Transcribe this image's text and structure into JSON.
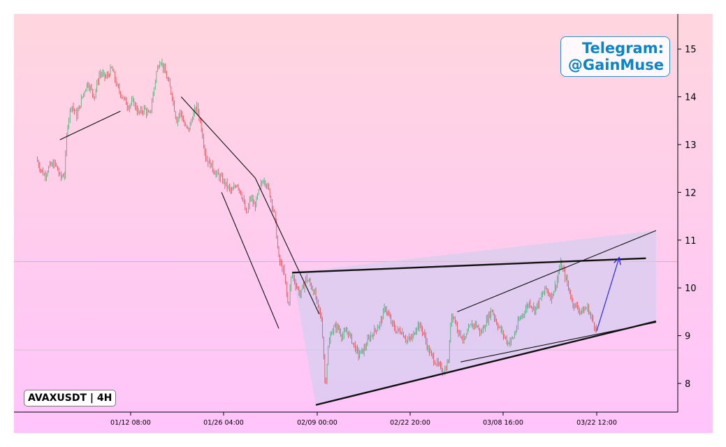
{
  "chart_data": {
    "type": "candlestick",
    "title": "",
    "symbol_label": "AVAXUSDT | 4H",
    "watermark_lines": [
      "Telegram:",
      "@GainMuse"
    ],
    "y_axis": {
      "position": "right",
      "range": [
        7.4,
        15.5
      ],
      "ticks": [
        8,
        9,
        10,
        11,
        12,
        13,
        14,
        15
      ]
    },
    "x_axis": {
      "range_days": [
        0,
        99
      ],
      "ticks": [
        {
          "label": "01/12 08:00",
          "day": 14.0
        },
        {
          "label": "01/26 04:00",
          "day": 27.8
        },
        {
          "label": "02/09 00:00",
          "day": 41.7
        },
        {
          "label": "02/22 20:00",
          "day": 55.5
        },
        {
          "label": "03/08 16:00",
          "day": 69.3
        },
        {
          "label": "03/22 12:00",
          "day": 83.2
        }
      ]
    },
    "price_path": [
      [
        0,
        12.7
      ],
      [
        0.6,
        12.5
      ],
      [
        1.2,
        12.35
      ],
      [
        2,
        12.55
      ],
      [
        2.8,
        12.6
      ],
      [
        3.6,
        12.3
      ],
      [
        4.2,
        12.4
      ],
      [
        4.6,
        13.4
      ],
      [
        5.2,
        13.85
      ],
      [
        6,
        13.6
      ],
      [
        6.8,
        14.0
      ],
      [
        7.6,
        14.3
      ],
      [
        8.6,
        14.0
      ],
      [
        9.4,
        14.5
      ],
      [
        10.4,
        14.4
      ],
      [
        11.2,
        14.6
      ],
      [
        12,
        14.2
      ],
      [
        12.8,
        14.0
      ],
      [
        13.6,
        13.8
      ],
      [
        14.4,
        13.9
      ],
      [
        15.2,
        13.65
      ],
      [
        16,
        13.75
      ],
      [
        16.8,
        13.6
      ],
      [
        17.4,
        14.1
      ],
      [
        17.8,
        14.5
      ],
      [
        18.4,
        14.8
      ],
      [
        19,
        14.55
      ],
      [
        19.6,
        14.3
      ],
      [
        20.2,
        14.0
      ],
      [
        20.8,
        13.5
      ],
      [
        21.4,
        13.7
      ],
      [
        22,
        13.4
      ],
      [
        22.6,
        13.3
      ],
      [
        23.2,
        13.6
      ],
      [
        23.8,
        13.8
      ],
      [
        24.4,
        13.45
      ],
      [
        25.2,
        12.7
      ],
      [
        25.8,
        12.6
      ],
      [
        26.6,
        12.4
      ],
      [
        27.4,
        12.3
      ],
      [
        28.2,
        12.15
      ],
      [
        29,
        12.0
      ],
      [
        29.8,
        12.2
      ],
      [
        30.6,
        11.9
      ],
      [
        31.2,
        11.5
      ],
      [
        31.8,
        11.9
      ],
      [
        32.4,
        11.7
      ],
      [
        33.2,
        12.1
      ],
      [
        33.8,
        12.3
      ],
      [
        34.6,
        12.0
      ],
      [
        35.4,
        11.5
      ],
      [
        36,
        10.6
      ],
      [
        36.8,
        10.3
      ],
      [
        37.4,
        9.6
      ],
      [
        37.9,
        10.3
      ],
      [
        38.6,
        10.05
      ],
      [
        39.2,
        9.85
      ],
      [
        40,
        10.2
      ],
      [
        40.6,
        10.1
      ],
      [
        41.3,
        9.9
      ],
      [
        41.8,
        9.6
      ],
      [
        42.4,
        9.3
      ],
      [
        42.9,
        7.9
      ],
      [
        43.3,
        8.7
      ],
      [
        43.8,
        9.1
      ],
      [
        44.6,
        9.2
      ],
      [
        45.4,
        9.0
      ],
      [
        46.2,
        9.1
      ],
      [
        47,
        8.85
      ],
      [
        47.8,
        8.6
      ],
      [
        48.6,
        8.7
      ],
      [
        49.4,
        8.95
      ],
      [
        50.2,
        9.1
      ],
      [
        51,
        9.25
      ],
      [
        51.8,
        9.6
      ],
      [
        52.6,
        9.3
      ],
      [
        53.4,
        9.1
      ],
      [
        54.2,
        9.1
      ],
      [
        55,
        8.9
      ],
      [
        55.8,
        8.95
      ],
      [
        56.6,
        9.25
      ],
      [
        57.4,
        9.1
      ],
      [
        58.2,
        8.7
      ],
      [
        59,
        8.5
      ],
      [
        59.8,
        8.35
      ],
      [
        60.6,
        8.25
      ],
      [
        61.2,
        8.5
      ],
      [
        61.6,
        9.5
      ],
      [
        62.2,
        9.3
      ],
      [
        62.8,
        9.05
      ],
      [
        63.6,
        8.9
      ],
      [
        64.4,
        9.2
      ],
      [
        65.2,
        9.25
      ],
      [
        66,
        9.05
      ],
      [
        66.8,
        9.3
      ],
      [
        67.6,
        9.55
      ],
      [
        68.4,
        9.25
      ],
      [
        69.2,
        9.05
      ],
      [
        70,
        8.85
      ],
      [
        70.8,
        8.95
      ],
      [
        71.6,
        9.3
      ],
      [
        72.4,
        9.5
      ],
      [
        73.2,
        9.7
      ],
      [
        74,
        9.55
      ],
      [
        74.8,
        9.75
      ],
      [
        75.6,
        10.0
      ],
      [
        76.4,
        9.8
      ],
      [
        77.2,
        10.1
      ],
      [
        77.8,
        10.5
      ],
      [
        78.4,
        10.3
      ],
      [
        79,
        10.0
      ],
      [
        79.6,
        9.7
      ],
      [
        80.2,
        9.6
      ],
      [
        81,
        9.5
      ],
      [
        81.8,
        9.6
      ],
      [
        82.6,
        9.3
      ],
      [
        83.2,
        9.12
      ]
    ],
    "trend_lines": [
      {
        "from": [
          3.5,
          13.1
        ],
        "to": [
          12.5,
          13.7
        ],
        "style": "thin"
      },
      {
        "from": [
          21.5,
          14.0
        ],
        "to": [
          32.5,
          12.3
        ],
        "style": "thin"
      },
      {
        "from": [
          32.5,
          12.3
        ],
        "to": [
          42.0,
          9.45
        ],
        "style": "thin"
      },
      {
        "from": [
          27.5,
          12.0
        ],
        "to": [
          36.0,
          9.15
        ],
        "style": "thin"
      },
      {
        "from": [
          62.5,
          9.5
        ],
        "to": [
          92.0,
          11.2
        ],
        "style": "thin"
      },
      {
        "from": [
          63.0,
          8.45
        ],
        "to": [
          92.0,
          9.28
        ],
        "style": "thin"
      },
      {
        "from": [
          38.0,
          10.32
        ],
        "to": [
          90.5,
          10.62
        ],
        "style": "bold"
      },
      {
        "from": [
          41.5,
          7.55
        ],
        "to": [
          92.0,
          9.3
        ],
        "style": "bold"
      }
    ],
    "wedge_polygon": [
      [
        38.0,
        10.32
      ],
      [
        92.0,
        11.2
      ],
      [
        92.0,
        9.3
      ],
      [
        41.5,
        7.55
      ]
    ],
    "projection_arrow": {
      "from": [
        83.2,
        9.1
      ],
      "to": [
        86.5,
        10.62
      ]
    },
    "reference_lines": [
      {
        "y": 10.55,
        "color": "#ff8888"
      },
      {
        "y": 8.7,
        "color": "#bbbbbb"
      }
    ],
    "colors": {
      "up": "#2aa35a",
      "down": "#d93636",
      "wedge_fill": "#c8d0ee",
      "arrow": "#2a2ae6"
    }
  }
}
